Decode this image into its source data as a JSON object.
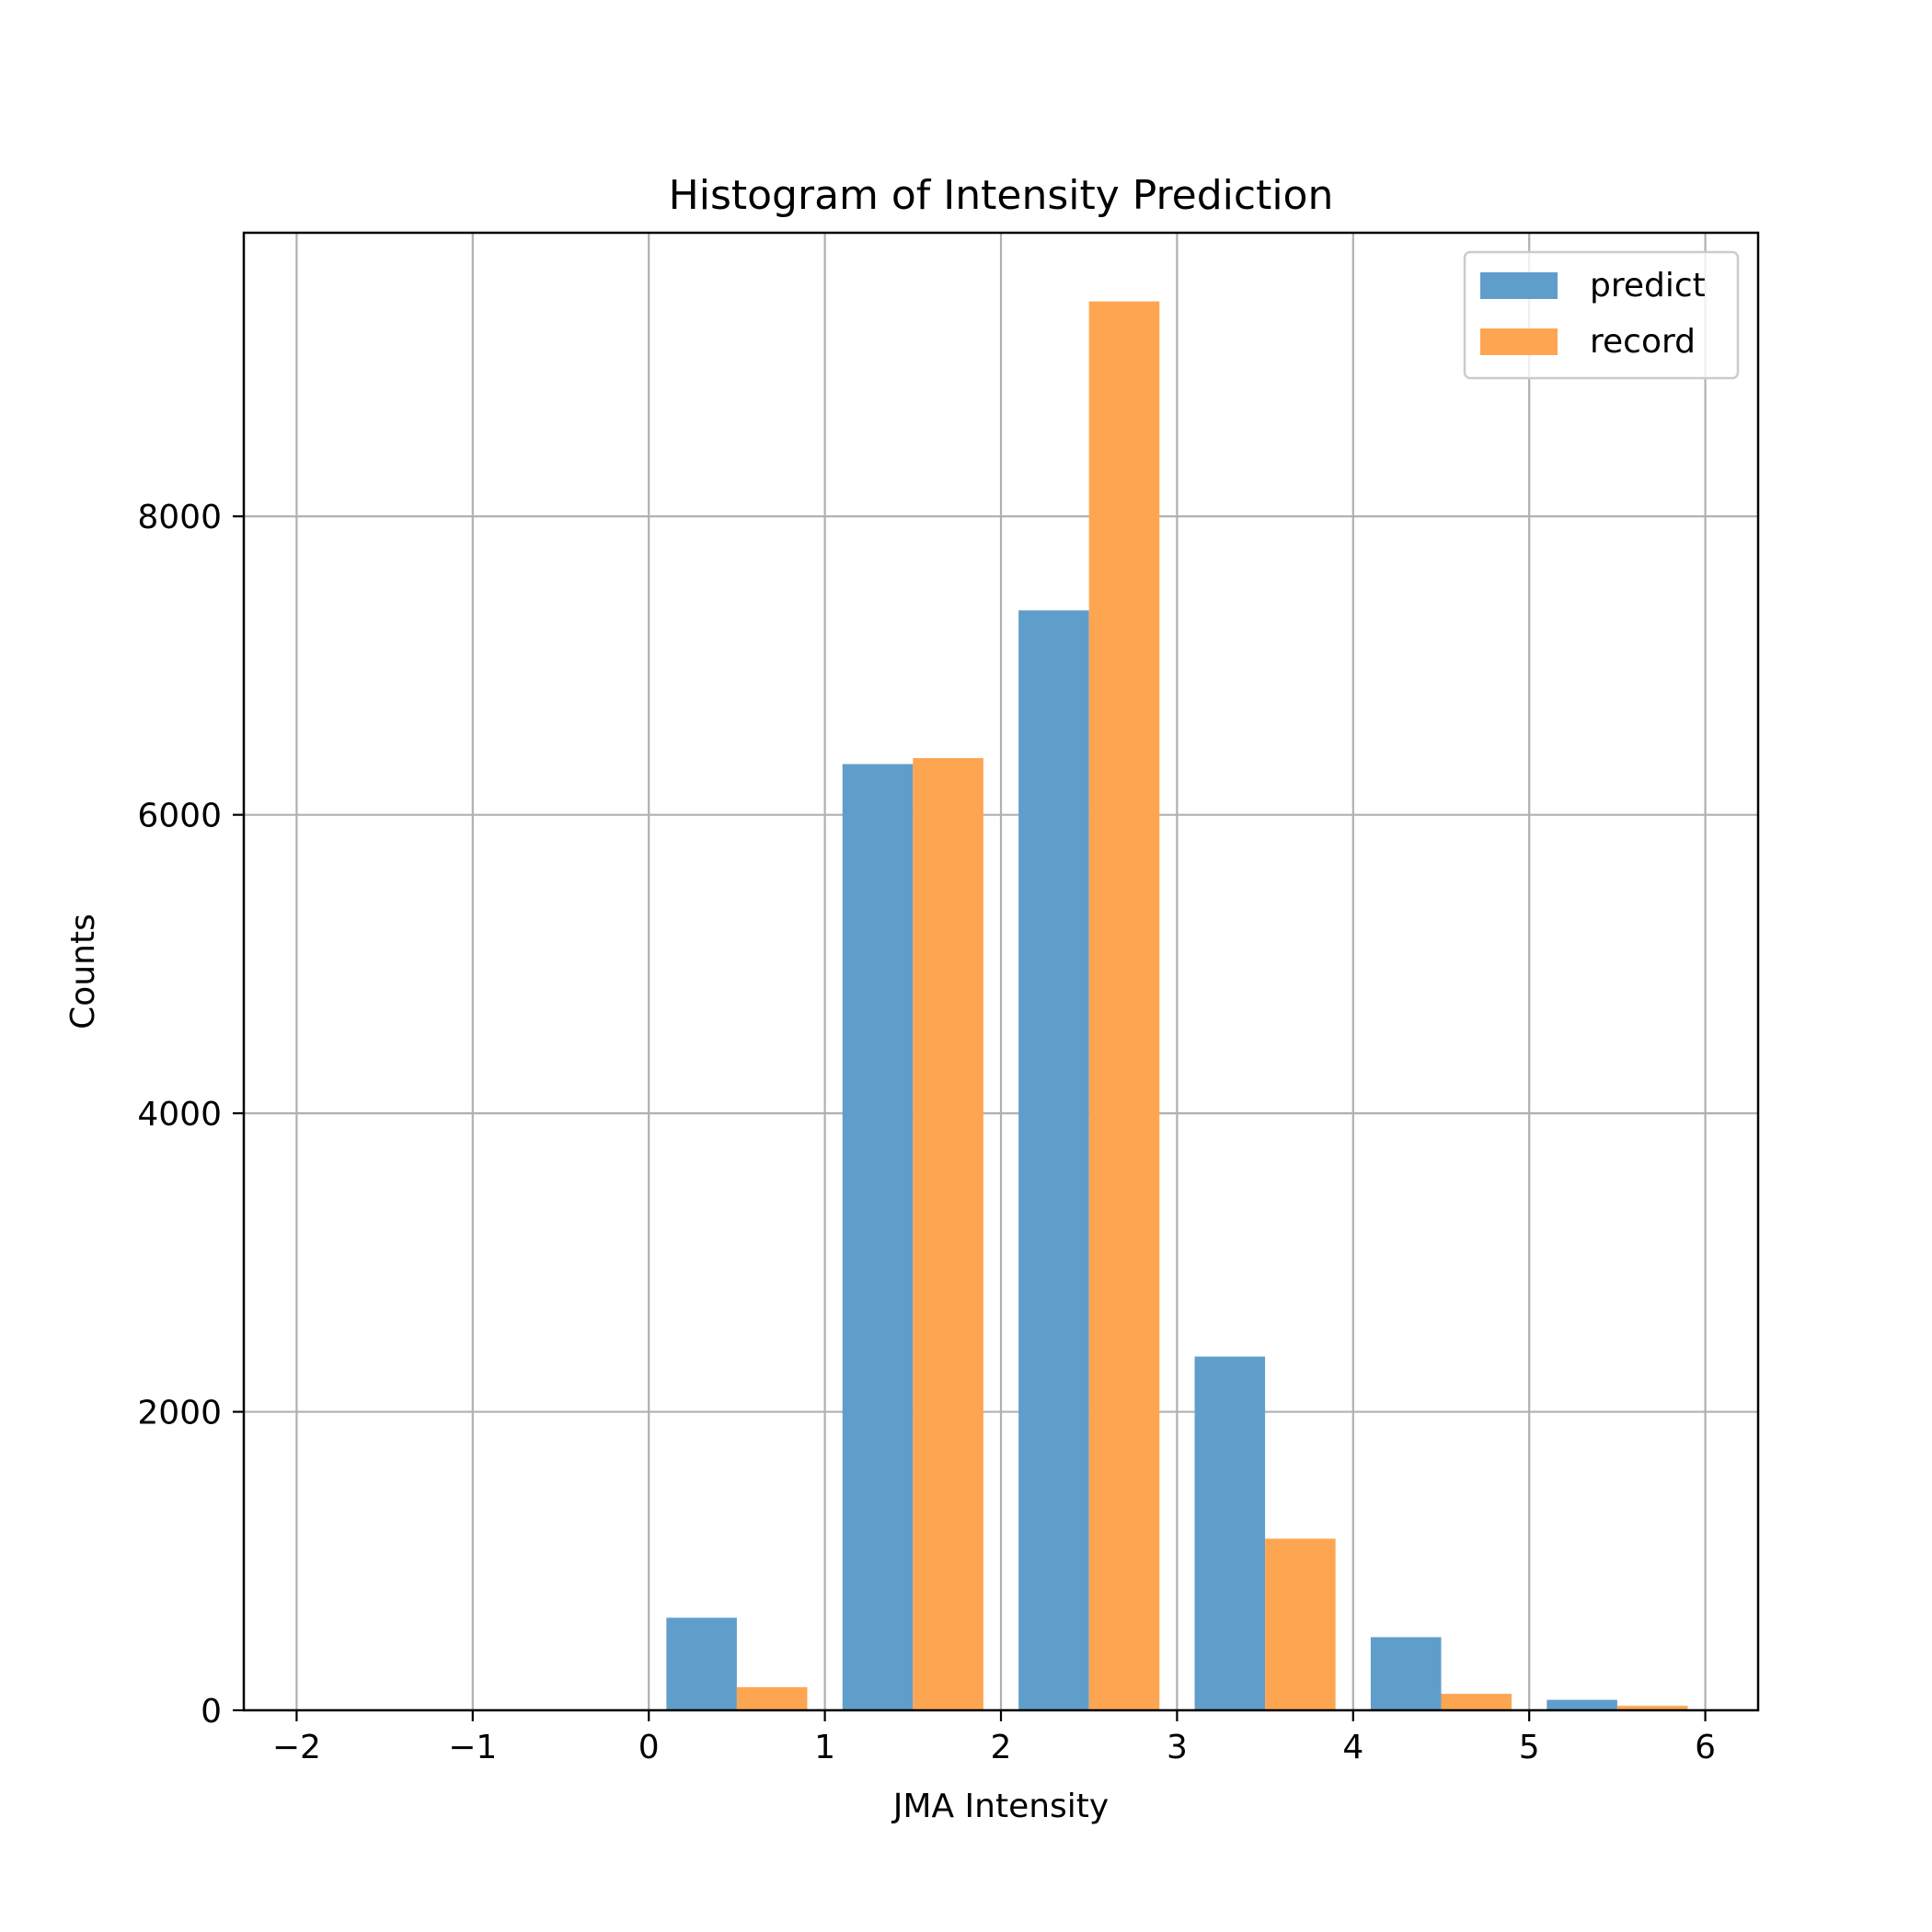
{
  "chart_data": {
    "type": "bar",
    "title": "Histogram of Intensity Prediction",
    "xlabel": "JMA Intensity",
    "ylabel": "Counts",
    "xlim": [
      -2.3,
      6.3
    ],
    "ylim": [
      0,
      9900
    ],
    "grid": true,
    "legend_position": "top-right",
    "x_ticks": [
      -2,
      -1,
      0,
      1,
      2,
      3,
      4,
      5,
      6
    ],
    "x_tick_labels": [
      "−2",
      "−1",
      "0",
      "1",
      "2",
      "3",
      "4",
      "5",
      "6"
    ],
    "y_ticks": [
      0,
      2000,
      4000,
      6000,
      8000
    ],
    "y_tick_labels": [
      "0",
      "2000",
      "4000",
      "6000",
      "8000"
    ],
    "bin_edges": [
      -2,
      -1,
      0,
      1,
      2,
      3,
      4,
      5,
      6
    ],
    "series": [
      {
        "name": "predict",
        "color": "#5f9ecb",
        "values": [
          0,
          0,
          620,
          6340,
          7370,
          2370,
          490,
          70
        ]
      },
      {
        "name": "record",
        "color": "#fea552",
        "values": [
          0,
          0,
          155,
          6380,
          9440,
          1150,
          110,
          30
        ]
      }
    ]
  }
}
